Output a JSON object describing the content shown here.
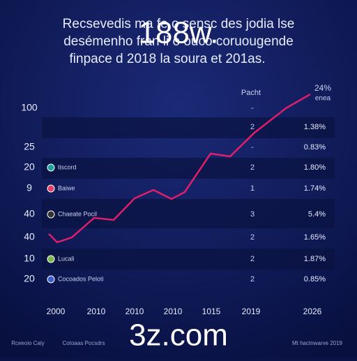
{
  "header": {
    "lines": [
      "Recsevedis ma  fe  o  sensc des jodia lse",
      "desémenho fran  li  o  ouco coruougende",
      "finpace d 2018 la soura et 201as."
    ]
  },
  "watermark": {
    "top": "188w.",
    "bottom": "3z.com"
  },
  "table": {
    "column_header": "Pacht",
    "corner": [
      "24%",
      "enea"
    ],
    "rows": [
      [
        "100",
        "",
        "-",
        ""
      ],
      [
        "",
        "",
        "2",
        "1.38%"
      ],
      [
        "25",
        "",
        "-",
        "0.83%"
      ],
      [
        "20",
        "tiscord",
        "2",
        "1.80%"
      ],
      [
        "9",
        "Baiwe",
        "1",
        "1.74%"
      ],
      [
        "40",
        "Chaeate Pocil",
        "3",
        "5.4%"
      ],
      [
        "40",
        "",
        "2",
        "1.65%"
      ],
      [
        "10",
        "Lucali",
        "2",
        "1.87%"
      ],
      [
        "20",
        "Cocoados Peloti",
        "2",
        "0.85%"
      ]
    ]
  },
  "x_labels": [
    "2000",
    "2010",
    "2010",
    "2010",
    "1015",
    "2019",
    "2026"
  ],
  "footer": [
    "Rceeoio Caly",
    "Cotoaas Pocsdrs",
    "Mt hactnwarve 2019"
  ]
}
